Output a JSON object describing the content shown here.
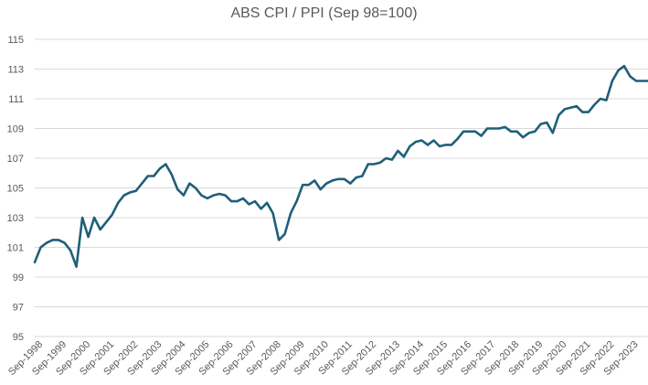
{
  "chart_data": {
    "type": "line",
    "title": "ABS CPI / PPI (Sep 98=100)",
    "xlabel": "",
    "ylabel": "",
    "ylim": [
      95,
      115
    ],
    "yticks": [
      95,
      97,
      99,
      101,
      103,
      105,
      107,
      109,
      111,
      113,
      115
    ],
    "grid": true,
    "legend": "none",
    "colors": {
      "series": "#1f5f7a",
      "grid": "#d9d9d9",
      "text": "#595959"
    },
    "xtick_labels": [
      "Sep-1998",
      "Sep-1999",
      "Sep-2000",
      "Sep-2001",
      "Sep-2002",
      "Sep-2003",
      "Sep-2004",
      "Sep-2005",
      "Sep-2006",
      "Sep-2007",
      "Sep-2008",
      "Sep-2009",
      "Sep-2010",
      "Sep-2011",
      "Sep-2012",
      "Sep-2013",
      "Sep-2014",
      "Sep-2015",
      "Sep-2016",
      "Sep-2017",
      "Sep-2018",
      "Sep-2019",
      "Sep-2020",
      "Sep-2021",
      "Sep-2022",
      "Sep-2023"
    ],
    "series": [
      {
        "values": [
          100.0,
          101.0,
          101.3,
          101.5,
          101.5,
          101.3,
          100.8,
          99.7,
          103.0,
          101.7,
          103.0,
          102.2,
          102.7,
          103.2,
          104.0,
          104.5,
          104.7,
          104.8,
          105.3,
          105.8,
          105.8,
          106.3,
          106.6,
          105.9,
          104.9,
          104.5,
          105.3,
          105.0,
          104.5,
          104.3,
          104.5,
          104.6,
          104.5,
          104.1,
          104.1,
          104.3,
          103.9,
          104.1,
          103.6,
          104.0,
          103.3,
          101.5,
          101.9,
          103.3,
          104.1,
          105.2,
          105.2,
          105.5,
          104.9,
          105.3,
          105.5,
          105.6,
          105.6,
          105.3,
          105.7,
          105.8,
          106.6,
          106.6,
          106.7,
          107.0,
          106.9,
          107.5,
          107.1,
          107.8,
          108.1,
          108.2,
          107.9,
          108.2,
          107.8,
          107.9,
          107.9,
          108.3,
          108.8,
          108.8,
          108.8,
          108.5,
          109.0,
          109.0,
          109.0,
          109.1,
          108.8,
          108.8,
          108.4,
          108.7,
          108.8,
          109.3,
          109.4,
          108.7,
          109.9,
          110.3,
          110.4,
          110.5,
          110.1,
          110.1,
          110.6,
          111.0,
          110.9,
          112.2,
          112.9,
          113.2,
          112.5,
          112.2,
          112.2,
          112.2
        ]
      }
    ]
  }
}
